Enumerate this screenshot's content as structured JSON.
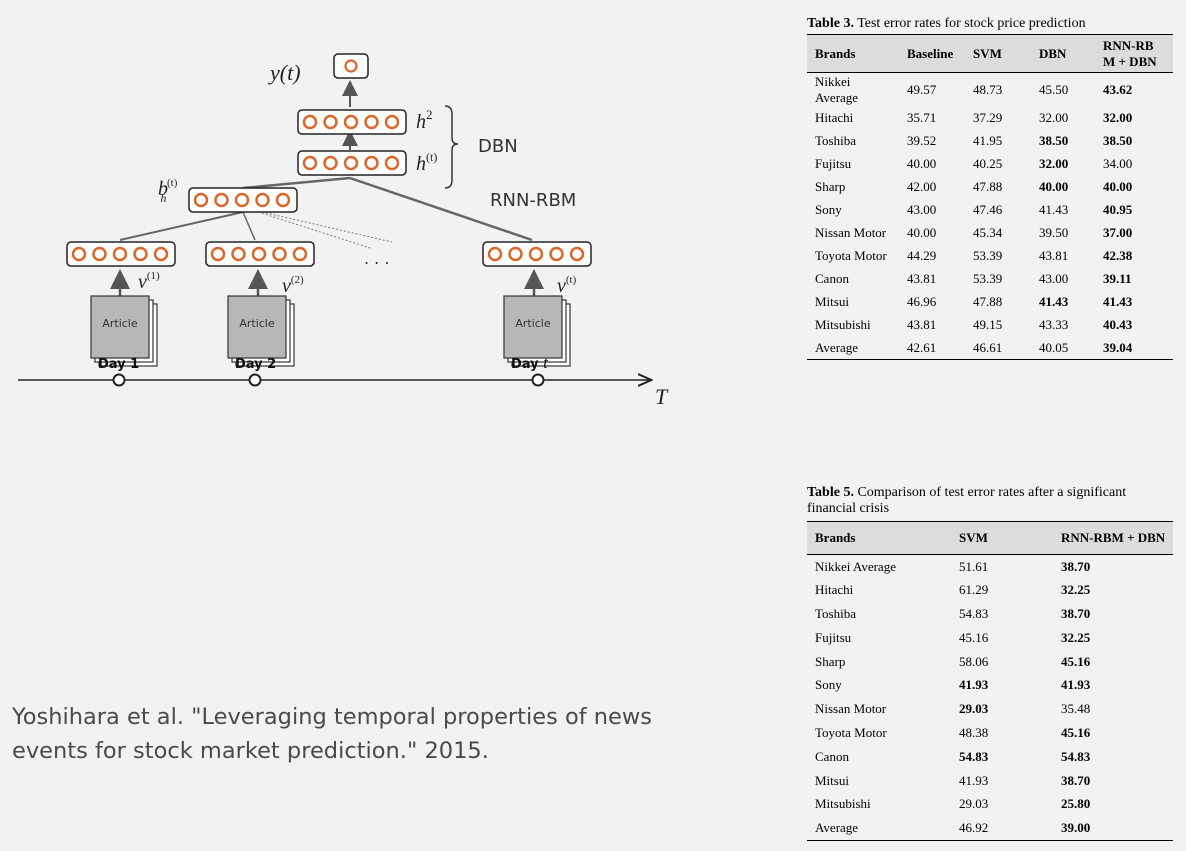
{
  "diagram": {
    "y_label": "y(t)",
    "h2_label": "h",
    "h2_sup": "2",
    "ht_label": "h",
    "ht_sup": "(t)",
    "dbn_label": "DBN",
    "rnn_rbm_label": "RNN-RBM",
    "bh_label": "b",
    "bh_sub": "h",
    "bh_sup": "(t)",
    "ellipsis": ". . .",
    "v1_label": "v",
    "v1_sup": "(1)",
    "v2_label": "v",
    "v2_sup": "(2)",
    "vt_label": "v",
    "vt_sup": "(t)",
    "article_label": "Article",
    "day1_label": "Day 1",
    "day2_label": "Day 2",
    "dayt_label": "Day ",
    "dayt_var": "t",
    "axis_label": "T",
    "accent_color": "#d9682a"
  },
  "citation": "Yoshihara et al. \"Leveraging temporal properties of news events for stock market prediction.\" 2015.",
  "table3": {
    "caption_bold": "Table 3.",
    "caption_text": " Test error rates for stock price prediction",
    "headers": [
      "Brands",
      "Baseline",
      "SVM",
      "DBN",
      "RNN-RB M + DBN"
    ],
    "rows": [
      {
        "brand": "Nikkei Average",
        "baseline": "49.57",
        "svm": "48.73",
        "dbn": "45.50",
        "rnn": "43.62",
        "bold": [
          "rnn"
        ]
      },
      {
        "brand": "Hitachi",
        "baseline": "35.71",
        "svm": "37.29",
        "dbn": "32.00",
        "rnn": "32.00",
        "bold": [
          "rnn"
        ]
      },
      {
        "brand": "Toshiba",
        "baseline": "39.52",
        "svm": "41.95",
        "dbn": "38.50",
        "rnn": "38.50",
        "bold": [
          "dbn",
          "rnn"
        ]
      },
      {
        "brand": "Fujitsu",
        "baseline": "40.00",
        "svm": "40.25",
        "dbn": "32.00",
        "rnn": "34.00",
        "bold": [
          "dbn"
        ]
      },
      {
        "brand": "Sharp",
        "baseline": "42.00",
        "svm": "47.88",
        "dbn": "40.00",
        "rnn": "40.00",
        "bold": [
          "dbn",
          "rnn"
        ]
      },
      {
        "brand": "Sony",
        "baseline": "43.00",
        "svm": "47.46",
        "dbn": "41.43",
        "rnn": "40.95",
        "bold": [
          "rnn"
        ]
      },
      {
        "brand": "Nissan Motor",
        "baseline": "40.00",
        "svm": "45.34",
        "dbn": "39.50",
        "rnn": "37.00",
        "bold": [
          "rnn"
        ]
      },
      {
        "brand": "Toyota Motor",
        "baseline": "44.29",
        "svm": "53.39",
        "dbn": "43.81",
        "rnn": "42.38",
        "bold": [
          "rnn"
        ]
      },
      {
        "brand": "Canon",
        "baseline": "43.81",
        "svm": "53.39",
        "dbn": "43.00",
        "rnn": "39.11",
        "bold": [
          "rnn"
        ]
      },
      {
        "brand": "Mitsui",
        "baseline": "46.96",
        "svm": "47.88",
        "dbn": "41.43",
        "rnn": "41.43",
        "bold": [
          "dbn",
          "rnn"
        ]
      },
      {
        "brand": "Mitsubishi",
        "baseline": "43.81",
        "svm": "49.15",
        "dbn": "43.33",
        "rnn": "40.43",
        "bold": [
          "rnn"
        ]
      },
      {
        "brand": "Average",
        "baseline": "42.61",
        "svm": "46.61",
        "dbn": "40.05",
        "rnn": "39.04",
        "bold": [
          "rnn"
        ]
      }
    ]
  },
  "table5": {
    "caption_bold": "Table 5.",
    "caption_text": " Comparison of test error rates after a significant financial crisis",
    "headers": [
      "Brands",
      "SVM",
      "RNN-RBM + DBN"
    ],
    "rows": [
      {
        "brand": "Nikkei Average",
        "svm": "51.61",
        "rnn": "38.70",
        "bold": [
          "rnn"
        ]
      },
      {
        "brand": "Hitachi",
        "svm": "61.29",
        "rnn": "32.25",
        "bold": [
          "rnn"
        ]
      },
      {
        "brand": "Toshiba",
        "svm": "54.83",
        "rnn": "38.70",
        "bold": [
          "rnn"
        ]
      },
      {
        "brand": "Fujitsu",
        "svm": "45.16",
        "rnn": "32.25",
        "bold": [
          "rnn"
        ]
      },
      {
        "brand": "Sharp",
        "svm": "58.06",
        "rnn": "45.16",
        "bold": [
          "rnn"
        ]
      },
      {
        "brand": "Sony",
        "svm": "41.93",
        "rnn": "41.93",
        "bold": [
          "svm",
          "rnn"
        ]
      },
      {
        "brand": "Nissan Motor",
        "svm": "29.03",
        "rnn": "35.48",
        "bold": [
          "svm"
        ]
      },
      {
        "brand": "Toyota Motor",
        "svm": "48.38",
        "rnn": "45.16",
        "bold": [
          "rnn"
        ]
      },
      {
        "brand": "Canon",
        "svm": "54.83",
        "rnn": "54.83",
        "bold": [
          "svm",
          "rnn"
        ]
      },
      {
        "brand": "Mitsui",
        "svm": "41.93",
        "rnn": "38.70",
        "bold": [
          "rnn"
        ]
      },
      {
        "brand": "Mitsubishi",
        "svm": "29.03",
        "rnn": "25.80",
        "bold": [
          "rnn"
        ]
      },
      {
        "brand": "Average",
        "svm": "46.92",
        "rnn": "39.00",
        "bold": [
          "rnn"
        ]
      }
    ]
  }
}
